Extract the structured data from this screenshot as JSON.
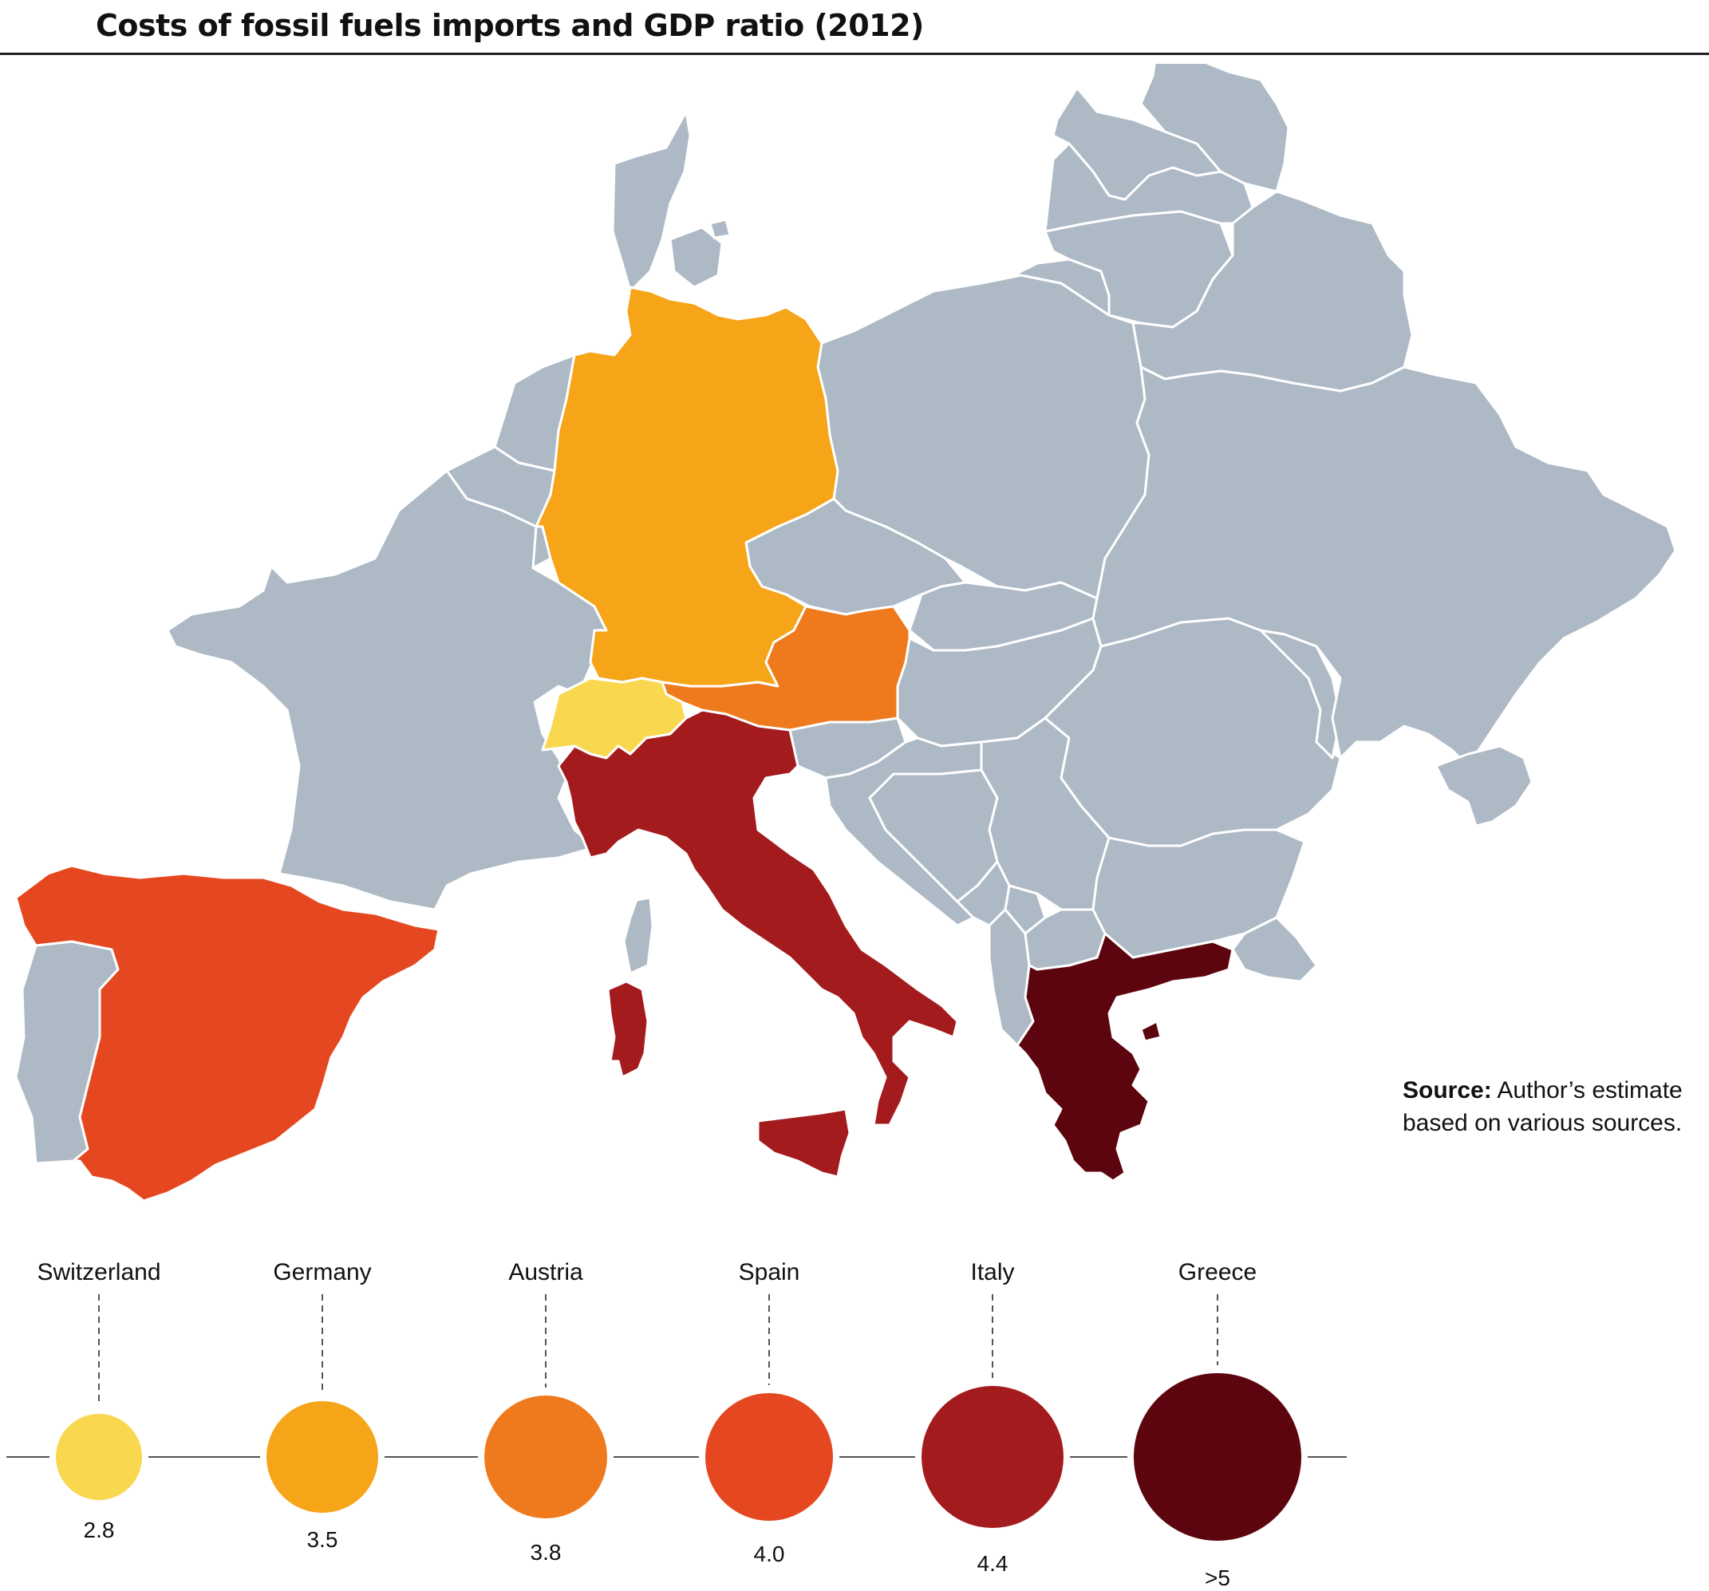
{
  "title": "Costs of fossil fuels imports and GDP ratio (2012)",
  "source": {
    "label": "Source:",
    "text": "Author’s estimate based on various sources."
  },
  "colors": {
    "land": "#adb9c5",
    "border": "#ffffff",
    "switzerland": "#f9d74f",
    "germany": "#f6a418",
    "austria": "#ef7a1e",
    "spain": "#e54820",
    "italy": "#a41b1e",
    "greece": "#5d050e",
    "connector": "#555555"
  },
  "chart_data": {
    "type": "choropleth",
    "title": "Costs of fossil fuels imports and GDP ratio (2012)",
    "series": [
      {
        "country": "Switzerland",
        "value": "2.8",
        "color": "#f9d74f"
      },
      {
        "country": "Germany",
        "value": "3.5",
        "color": "#f6a418"
      },
      {
        "country": "Austria",
        "value": "3.8",
        "color": "#ef7a1e"
      },
      {
        "country": "Spain",
        "value": "4.0",
        "color": "#e54820"
      },
      {
        "country": "Italy",
        "value": "4.4",
        "color": "#a41b1e"
      },
      {
        "country": "Greece",
        "value": ">5",
        "color": "#5d050e"
      }
    ]
  }
}
